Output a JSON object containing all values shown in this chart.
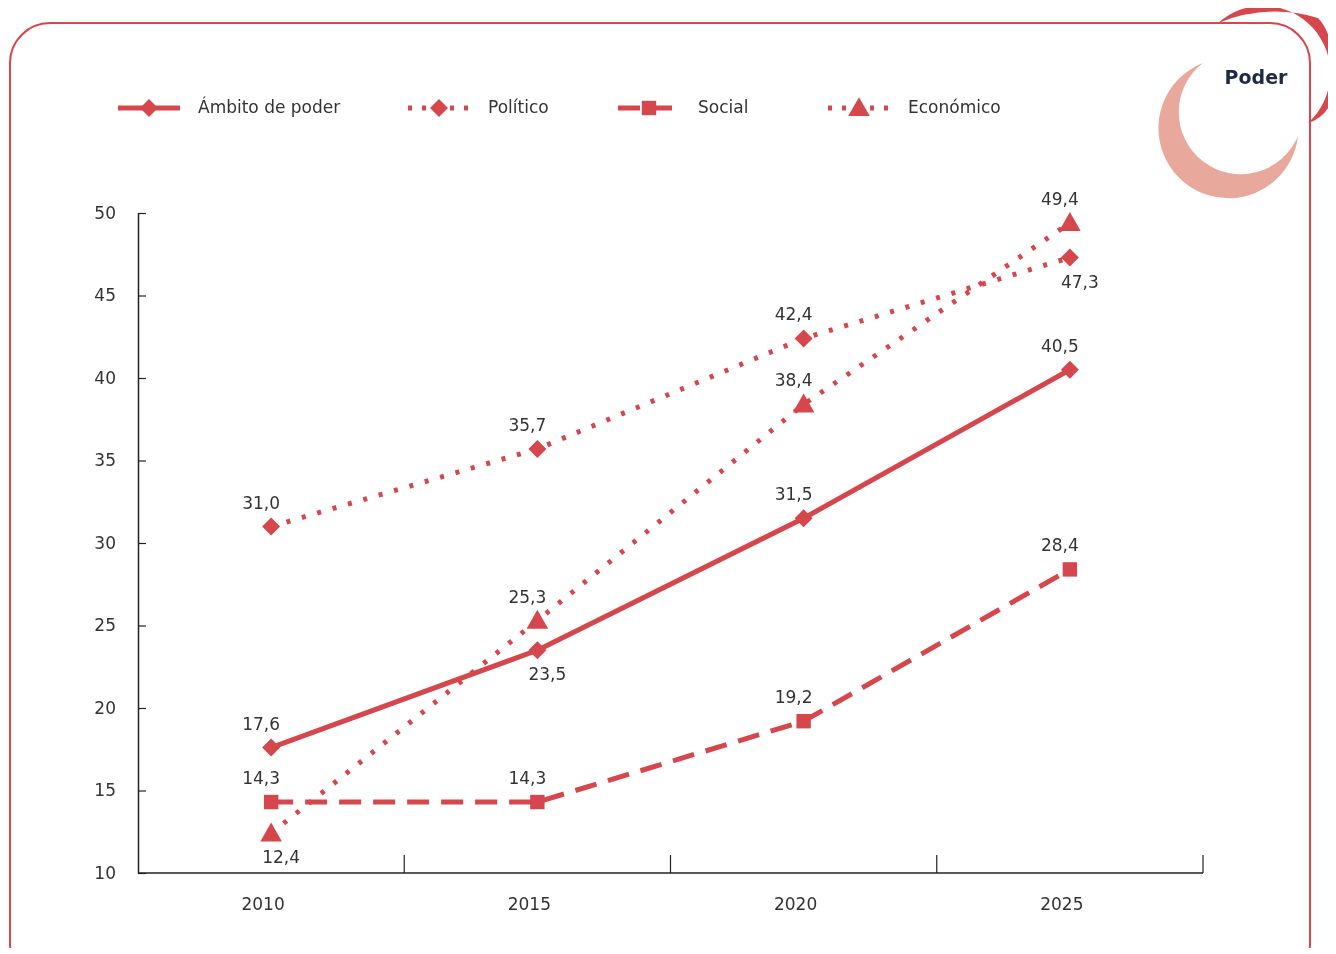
{
  "chart_data": {
    "type": "line",
    "title": "Poder",
    "categories": [
      "2010",
      "2015",
      "2020",
      "2025"
    ],
    "ylim": [
      10,
      50
    ],
    "yticks": [
      10,
      15,
      20,
      25,
      30,
      35,
      40,
      45,
      50
    ],
    "grid": false,
    "legend": "top left",
    "series": [
      {
        "name": "Ámbito de poder",
        "color": "#d5474c",
        "marker": "diamond",
        "line_style": "solid",
        "values": [
          17.6,
          23.5,
          31.5,
          40.5
        ],
        "value_labels": [
          "17,6",
          "23,5",
          "31,5",
          "40,5"
        ]
      },
      {
        "name": "Político",
        "color": "#d5474c",
        "marker": "diamond",
        "line_style": "dotted",
        "values": [
          31.0,
          35.7,
          42.4,
          47.3
        ],
        "value_labels": [
          "31,0",
          "35,7",
          "42,4",
          "47,3"
        ]
      },
      {
        "name": "Social",
        "color": "#d5474c",
        "marker": "square",
        "line_style": "dashed",
        "values": [
          14.3,
          14.3,
          19.2,
          28.4
        ],
        "value_labels": [
          "14,3",
          "14,3",
          "19,2",
          "28,4"
        ]
      },
      {
        "name": "Económico",
        "color": "#d5474c",
        "marker": "triangle",
        "line_style": "dotted",
        "values": [
          12.4,
          25.3,
          38.4,
          49.4
        ],
        "value_labels": [
          "12,4",
          "25,3",
          "38,4",
          "49,4"
        ]
      }
    ]
  }
}
